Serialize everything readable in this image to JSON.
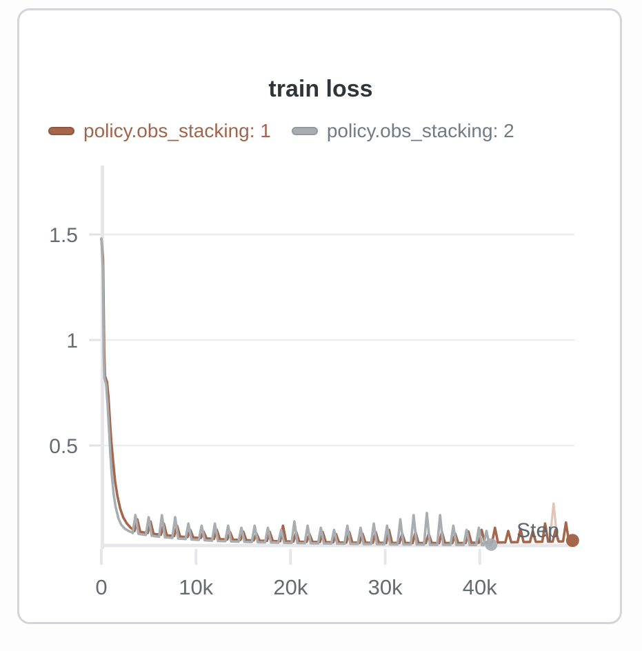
{
  "panel": {
    "title": "train loss"
  },
  "legend": [
    {
      "label": "policy.obs_stacking: 1",
      "color": "#a4674c",
      "swatch_border": "#8f5740",
      "text_color": "#a2644a"
    },
    {
      "label": "policy.obs_stacking: 2",
      "color": "#a7adb1",
      "swatch_border": "#929a9f",
      "text_color": "#6f7b85"
    }
  ],
  "chart_data": {
    "type": "line",
    "title": "train loss",
    "xlabel": "Step",
    "ylabel": "",
    "xlim": [
      0,
      50100
    ],
    "ylim": [
      0,
      1.83
    ],
    "grid": true,
    "legend_position": "top",
    "x_ticks": [
      {
        "step": 0,
        "label": "0"
      },
      {
        "step": 10000,
        "label": "10k"
      },
      {
        "step": 20000,
        "label": "20k"
      },
      {
        "step": 30000,
        "label": "30k"
      },
      {
        "step": 40000,
        "label": "40k"
      }
    ],
    "y_ticks": [
      {
        "value": 0.5,
        "label": "0.5"
      },
      {
        "value": 1,
        "label": "1"
      },
      {
        "value": 1.5,
        "label": "1.5"
      }
    ],
    "grid_color": "#eeeef2",
    "axis_color": "#e7e7eb",
    "tick_stub_color": "#e1e1e6",
    "tick_label_color": "#646b73",
    "step_label_color": "#5d656e",
    "series": [
      {
        "name": "policy.obs_stacking: 1",
        "color": "#a4674c",
        "descent": [
          [
            0,
            1.48
          ],
          [
            180,
            1.38
          ],
          [
            300,
            0.95
          ],
          [
            380,
            0.83
          ],
          [
            600,
            0.8
          ],
          [
            750,
            0.73
          ],
          [
            900,
            0.62
          ],
          [
            1050,
            0.52
          ],
          [
            1250,
            0.42
          ],
          [
            1450,
            0.33
          ],
          [
            1700,
            0.26
          ],
          [
            2000,
            0.2
          ],
          [
            2300,
            0.16
          ],
          [
            2700,
            0.13
          ],
          [
            3100,
            0.11
          ],
          [
            3400,
            0.1
          ]
        ],
        "baseline": [
          [
            3400,
            0.095
          ],
          [
            6000,
            0.078
          ],
          [
            9000,
            0.066
          ],
          [
            12000,
            0.057
          ],
          [
            16000,
            0.05
          ],
          [
            20000,
            0.045
          ],
          [
            26000,
            0.04
          ],
          [
            32000,
            0.038
          ],
          [
            38000,
            0.038
          ],
          [
            44000,
            0.042
          ],
          [
            49800,
            0.046
          ]
        ],
        "peaks": [
          [
            3800,
            0.15
          ],
          [
            5200,
            0.14
          ],
          [
            6600,
            0.13
          ],
          [
            8000,
            0.12
          ],
          [
            9400,
            0.1
          ],
          [
            10800,
            0.092
          ],
          [
            12200,
            0.1
          ],
          [
            13600,
            0.09
          ],
          [
            15000,
            0.092
          ],
          [
            16400,
            0.082
          ],
          [
            17800,
            0.09
          ],
          [
            19200,
            0.12
          ],
          [
            20600,
            0.09
          ],
          [
            22000,
            0.08
          ],
          [
            23400,
            0.09
          ],
          [
            24800,
            0.08
          ],
          [
            26200,
            0.09
          ],
          [
            27600,
            0.082
          ],
          [
            29000,
            0.09
          ],
          [
            30400,
            0.1
          ],
          [
            31800,
            0.082
          ],
          [
            33200,
            0.09
          ],
          [
            34600,
            0.082
          ],
          [
            36000,
            0.09
          ],
          [
            37400,
            0.082
          ],
          [
            38800,
            0.092
          ],
          [
            40200,
            0.1
          ],
          [
            41600,
            0.11
          ],
          [
            43000,
            0.095
          ],
          [
            44300,
            0.105
          ],
          [
            45600,
            0.095
          ],
          [
            46900,
            0.13
          ],
          [
            48000,
            0.1
          ],
          [
            49100,
            0.135
          ]
        ],
        "end_marker": {
          "step": 49800,
          "value": 0.05
        }
      },
      {
        "name": "policy.obs_stacking: 2",
        "color": "#a7adb1",
        "descent": [
          [
            0,
            1.48
          ],
          [
            150,
            1.35
          ],
          [
            250,
            0.92
          ],
          [
            320,
            0.82
          ],
          [
            500,
            0.79
          ],
          [
            650,
            0.7
          ],
          [
            800,
            0.58
          ],
          [
            950,
            0.46
          ],
          [
            1100,
            0.36
          ],
          [
            1300,
            0.27
          ],
          [
            1500,
            0.21
          ],
          [
            1800,
            0.155
          ],
          [
            2100,
            0.125
          ],
          [
            2500,
            0.105
          ],
          [
            3000,
            0.092
          ],
          [
            3300,
            0.088
          ]
        ],
        "baseline": [
          [
            3300,
            0.085
          ],
          [
            6000,
            0.068
          ],
          [
            9000,
            0.056
          ],
          [
            12000,
            0.048
          ],
          [
            16000,
            0.042
          ],
          [
            20000,
            0.038
          ],
          [
            26000,
            0.034
          ],
          [
            32000,
            0.031
          ],
          [
            41200,
            0.028
          ]
        ],
        "peaks": [
          [
            3600,
            0.17
          ],
          [
            5000,
            0.16
          ],
          [
            6400,
            0.17
          ],
          [
            7800,
            0.16
          ],
          [
            9200,
            0.13
          ],
          [
            10600,
            0.12
          ],
          [
            12000,
            0.13
          ],
          [
            13400,
            0.12
          ],
          [
            14800,
            0.11
          ],
          [
            16200,
            0.12
          ],
          [
            17600,
            0.11
          ],
          [
            19000,
            0.1
          ],
          [
            20400,
            0.14
          ],
          [
            21800,
            0.12
          ],
          [
            23200,
            0.11
          ],
          [
            24600,
            0.1
          ],
          [
            26000,
            0.12
          ],
          [
            27400,
            0.11
          ],
          [
            28800,
            0.13
          ],
          [
            30200,
            0.12
          ],
          [
            31600,
            0.15
          ],
          [
            33000,
            0.17
          ],
          [
            34400,
            0.18
          ],
          [
            35800,
            0.17
          ],
          [
            37200,
            0.12
          ],
          [
            38600,
            0.1
          ],
          [
            39900,
            0.11
          ],
          [
            40700,
            0.095
          ]
        ],
        "end_marker": {
          "step": 41200,
          "value": 0.03
        }
      }
    ],
    "faded_spike": {
      "series": "policy.obs_stacking: 1",
      "color": "#cf9c83",
      "points": [
        [
          47400,
          0.05
        ],
        [
          47800,
          0.225
        ],
        [
          48200,
          0.05
        ]
      ]
    }
  }
}
